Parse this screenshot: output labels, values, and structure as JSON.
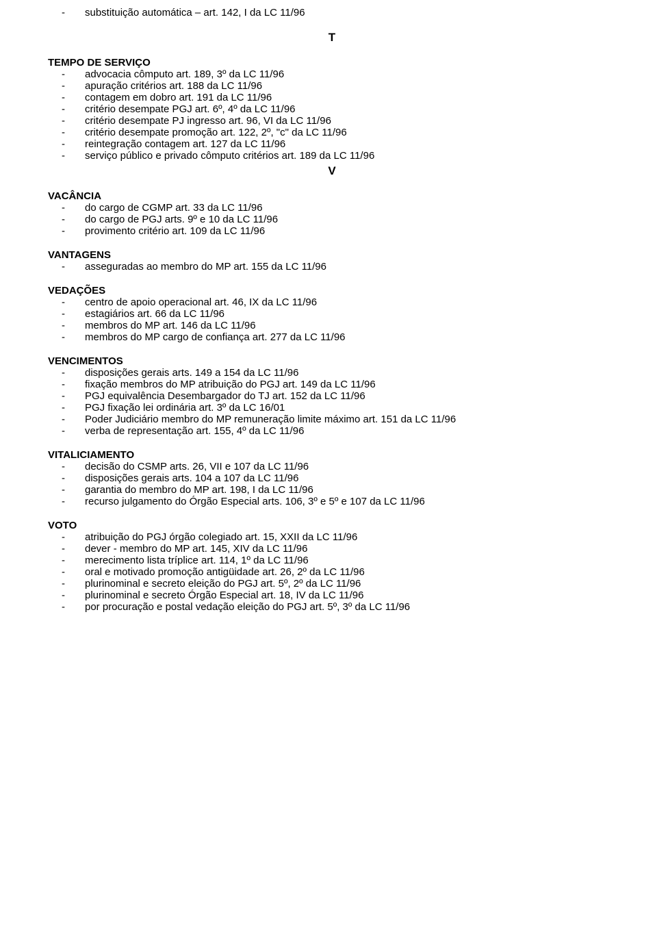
{
  "firstItem": "substituição automática – art. 142, I da LC 11/96",
  "letters": {
    "t": "T",
    "v": "V"
  },
  "sections": [
    {
      "heading": "TEMPO DE SERVIÇO",
      "items": [
        "advocacia cômputo art. 189, 3º da LC 11/96",
        "apuração critérios art. 188 da LC 11/96",
        "contagem em dobro art. 191 da LC 11/96",
        "critério desempate PGJ art. 6º, 4º da LC 11/96",
        "critério desempate PJ ingresso art. 96, VI da LC 11/96",
        "critério desempate promoção art. 122, 2º, \"c\" da LC 11/96",
        "reintegração contagem art. 127 da LC 11/96",
        "serviço público e privado cômputo critérios art. 189 da LC 11/96"
      ]
    },
    {
      "heading": "VACÂNCIA",
      "items": [
        "do cargo de CGMP art. 33 da LC 11/96",
        "do cargo de PGJ arts. 9º e 10 da LC 11/96",
        "provimento critério art. 109 da LC 11/96"
      ]
    },
    {
      "heading": "VANTAGENS",
      "items": [
        "asseguradas ao membro do MP art. 155 da LC 11/96"
      ]
    },
    {
      "heading": "VEDAÇÕES",
      "items": [
        "centro de apoio operacional art. 46, IX da LC 11/96",
        "estagiários art. 66 da LC 11/96",
        "membros do MP art. 146 da LC 11/96",
        "membros do MP cargo de confiança art. 277 da LC 11/96"
      ]
    },
    {
      "heading": "VENCIMENTOS",
      "items": [
        "disposições gerais arts. 149 a 154 da LC 11/96",
        "fixação membros do MP atribuição do PGJ art. 149 da LC 11/96",
        "PGJ equivalência Desembargador do TJ art. 152 da LC 11/96",
        "PGJ fixação lei ordinária art. 3º da LC 16/01",
        "Poder Judiciário membro do MP remuneração limite máximo art. 151 da LC 11/96",
        "verba de representação art. 155, 4º da LC 11/96"
      ]
    },
    {
      "heading": "VITALICIAMENTO",
      "items": [
        "decisão do CSMP arts. 26, VII e 107 da LC 11/96",
        "disposições gerais arts. 104 a 107 da LC 11/96",
        "garantia do membro do MP art. 198, I da LC 11/96",
        "recurso julgamento do Órgão Especial arts. 106, 3º e 5º e 107 da LC 11/96"
      ]
    },
    {
      "heading": "VOTO",
      "items": [
        "atribuição do PGJ órgão colegiado art. 15, XXII da LC 11/96",
        "dever - membro do MP art. 145, XIV da LC 11/96",
        "merecimento lista tríplice art. 114, 1º da LC 11/96",
        "oral e motivado promoção antigüidade art. 26, 2º da LC 11/96",
        "plurinominal e secreto eleição do PGJ art. 5º, 2º da LC 11/96",
        "plurinominal e secreto Órgão Especial art. 18, IV da LC 11/96",
        "por procuração e postal vedação eleição do PGJ art. 5º, 3º da LC 11/96"
      ]
    }
  ]
}
